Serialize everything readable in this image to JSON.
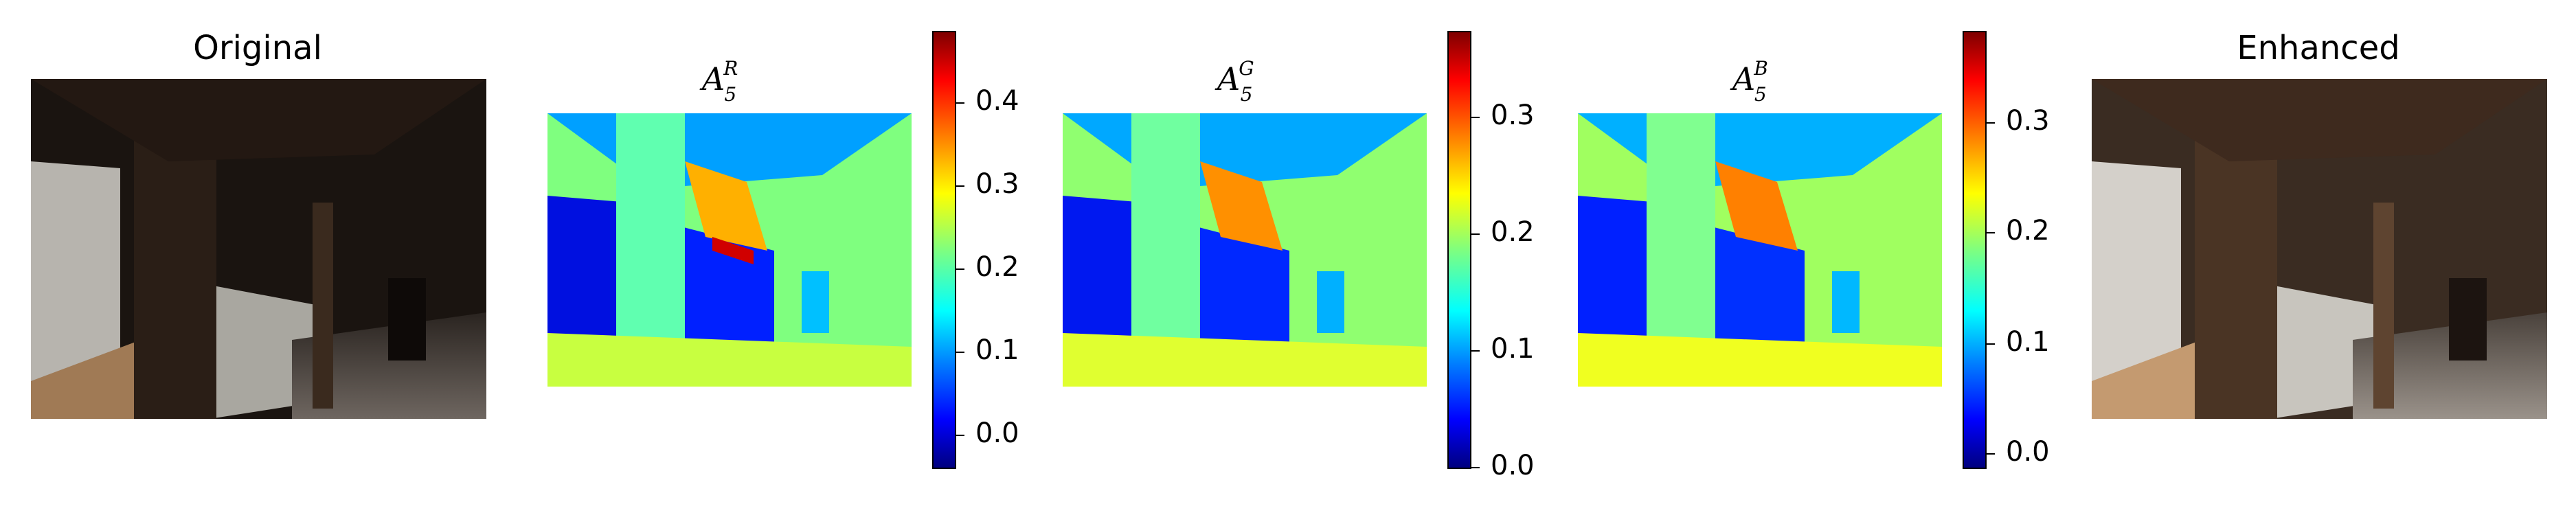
{
  "panels": [
    {
      "id": "original",
      "title": "Original"
    },
    {
      "id": "map_r",
      "title_base": "A",
      "title_sup": "R",
      "title_sub": "5",
      "colorbar_ticks": [
        "0.0",
        "0.1",
        "0.2",
        "0.3",
        "0.4"
      ]
    },
    {
      "id": "map_g",
      "title_base": "A",
      "title_sup": "G",
      "title_sub": "5",
      "colorbar_ticks": [
        "0.0",
        "0.1",
        "0.2",
        "0.3"
      ]
    },
    {
      "id": "map_b",
      "title_base": "A",
      "title_sup": "B",
      "title_sub": "5",
      "colorbar_ticks": [
        "0.0",
        "0.1",
        "0.2",
        "0.3"
      ]
    },
    {
      "id": "enhanced",
      "title": "Enhanced"
    }
  ],
  "colors": {
    "colormap": "jet"
  }
}
